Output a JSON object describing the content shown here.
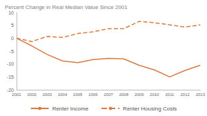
{
  "chart_data": {
    "type": "line",
    "title": "Percent Change in Real Median Value Since 2001",
    "categories": [
      "2001",
      "2002",
      "2003",
      "2004",
      "2005",
      "2006",
      "2007",
      "2008",
      "2009",
      "2010",
      "2011",
      "2012",
      "2013"
    ],
    "series": [
      {
        "name": "Renter Income",
        "color": "#d97a3f",
        "line_style": "solid",
        "values": [
          0,
          -3,
          -6.3,
          -8.8,
          -9.5,
          -8.3,
          -7.8,
          -8,
          -10.5,
          -12.3,
          -15,
          -12.5,
          -10.5
        ]
      },
      {
        "name": "Renter Housing Costs",
        "color": "#d97a3f",
        "line_style": "dashed",
        "values": [
          0,
          -1.3,
          0.7,
          0.3,
          1.8,
          2.5,
          3.7,
          3.7,
          6.5,
          6,
          5.2,
          4.3,
          5.2
        ]
      }
    ],
    "ylim": [
      -20,
      10
    ],
    "yticks": [
      -20,
      -15,
      -10,
      -5,
      0,
      5,
      10
    ],
    "grid": false,
    "legend": "bottom"
  }
}
